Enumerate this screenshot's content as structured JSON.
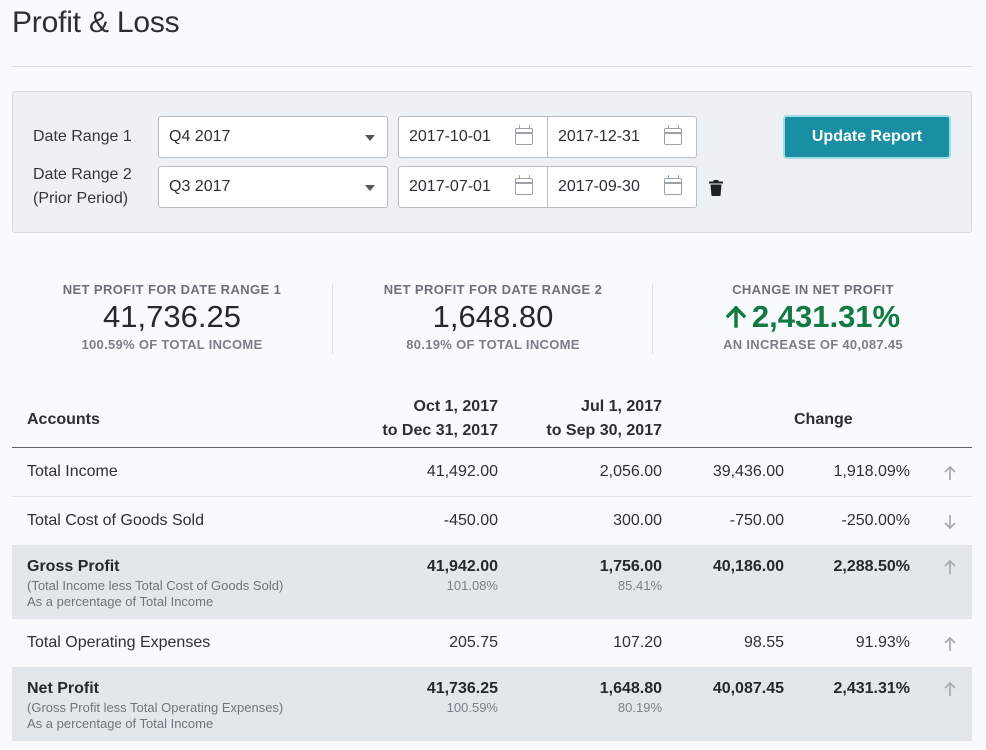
{
  "page": {
    "title": "Profit & Loss"
  },
  "filters": {
    "range1": {
      "label": "Date Range 1",
      "period": "Q4 2017",
      "start": "2017-10-01",
      "end": "2017-12-31"
    },
    "range2": {
      "label_line1": "Date Range 2",
      "label_line2": "(Prior Period)",
      "period": "Q3 2017",
      "start": "2017-07-01",
      "end": "2017-09-30"
    },
    "update_button": "Update Report"
  },
  "kpis": {
    "range1": {
      "label": "NET PROFIT FOR DATE RANGE 1",
      "value": "41,736.25",
      "sub": "100.59% OF TOTAL INCOME"
    },
    "range2": {
      "label": "NET PROFIT FOR DATE RANGE 2",
      "value": "1,648.80",
      "sub": "80.19% OF TOTAL INCOME"
    },
    "change": {
      "label": "CHANGE IN NET PROFIT",
      "value": "2,431.31%",
      "sub": "AN INCREASE OF 40,087.45"
    }
  },
  "table": {
    "headers": {
      "accounts": "Accounts",
      "col1_line1": "Oct 1, 2017",
      "col1_line2": "to Dec 31, 2017",
      "col2_line1": "Jul 1, 2017",
      "col2_line2": "to Sep 30, 2017",
      "change": "Change"
    },
    "rows": [
      {
        "account": "Total Income",
        "v1": "41,492.00",
        "v2": "2,056.00",
        "change": "39,436.00",
        "pct": "1,918.09%",
        "direction": "up"
      },
      {
        "account": "Total Cost of Goods Sold",
        "v1": "-450.00",
        "v2": "300.00",
        "change": "-750.00",
        "pct": "-250.00%",
        "direction": "down"
      },
      {
        "account": "Gross Profit",
        "desc1": "(Total Income less Total Cost of Goods Sold)",
        "desc2": "As a percentage of Total Income",
        "v1": "41,942.00",
        "v1_pct": "101.08%",
        "v2": "1,756.00",
        "v2_pct": "85.41%",
        "change": "40,186.00",
        "pct": "2,288.50%",
        "direction": "up"
      },
      {
        "account": "Total Operating Expenses",
        "v1": "205.75",
        "v2": "107.20",
        "change": "98.55",
        "pct": "91.93%",
        "direction": "up"
      },
      {
        "account": "Net Profit",
        "desc1": "(Gross Profit less Total Operating Expenses)",
        "desc2": "As a percentage of Total Income",
        "v1": "41,736.25",
        "v1_pct": "100.59%",
        "v2": "1,648.80",
        "v2_pct": "80.19%",
        "change": "40,087.45",
        "pct": "2,431.31%",
        "direction": "up"
      }
    ]
  },
  "icons": {
    "calendar": "calendar-icon",
    "trash": "trash-icon",
    "arrow_up": "arrow-up-icon",
    "arrow_down": "arrow-down-icon"
  },
  "colors": {
    "accent": "#1a8fa3",
    "positive": "#137a45",
    "total_row_bg": "#e2e7ec"
  }
}
